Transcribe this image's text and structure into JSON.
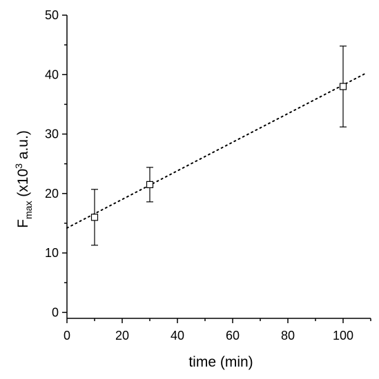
{
  "chart_data": {
    "type": "scatter",
    "xlabel": "time (min)",
    "ylabel": {
      "base": "F",
      "subscript": "max",
      "prefix": " (x10",
      "superscript": "3",
      "suffix": " a.u.)"
    },
    "xlim": [
      0,
      110
    ],
    "ylim": [
      -1,
      50
    ],
    "x_ticks": [
      0,
      20,
      40,
      60,
      80,
      100
    ],
    "x_tick_labels": [
      "0",
      "20",
      "40",
      "60",
      "80",
      "100"
    ],
    "y_ticks": [
      0,
      10,
      20,
      30,
      40,
      50
    ],
    "y_tick_labels": [
      "0",
      "10",
      "20",
      "30",
      "40",
      "50"
    ],
    "grid": false,
    "series": [
      {
        "marker": "open-square",
        "points": [
          {
            "x": 10,
            "y": 16.0,
            "err_low": 11.3,
            "err_high": 20.7
          },
          {
            "x": 30,
            "y": 21.5,
            "err_low": 18.6,
            "err_high": 24.4
          },
          {
            "x": 100,
            "y": 38.0,
            "err_low": 31.2,
            "err_high": 44.8
          }
        ]
      }
    ],
    "fit_line": {
      "style": "dotted",
      "x_range": [
        0,
        108
      ],
      "intercept": 14.2,
      "slope": 0.2405
    }
  }
}
